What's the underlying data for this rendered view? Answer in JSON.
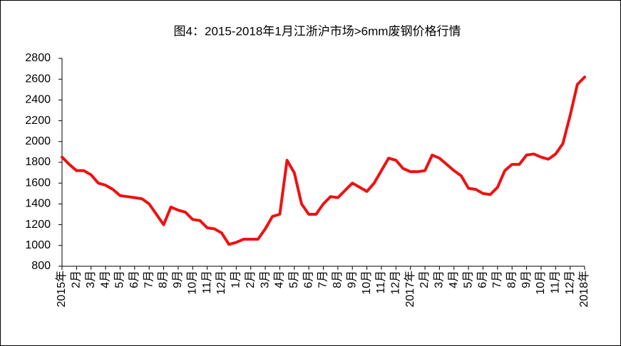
{
  "chart_data": {
    "type": "line",
    "title": "图4：2015-2018年1月江浙沪市场>6mm废钢价格行情",
    "categories": [
      "2015年",
      null,
      "2月",
      null,
      "3月",
      null,
      "4月",
      null,
      "5月",
      null,
      "6月",
      null,
      "7月",
      null,
      "8月",
      null,
      "9月",
      null,
      "10月",
      null,
      "11月",
      null,
      "12月",
      null,
      "1月",
      null,
      "2月",
      null,
      "3月",
      null,
      "4月",
      null,
      "5月",
      null,
      "6月",
      null,
      "7月",
      null,
      "8月",
      null,
      "9月",
      null,
      "10月",
      null,
      "11月",
      null,
      "12月",
      null,
      "2017年",
      null,
      "2月",
      null,
      "3月",
      null,
      "4月",
      null,
      "5月",
      null,
      "6月",
      null,
      "7月",
      null,
      "8月",
      null,
      "9月",
      null,
      "10月",
      null,
      "11月",
      null,
      "12月",
      null,
      "2018年"
    ],
    "series": [
      {
        "name": "江浙沪市场>6mm废钢价格",
        "color": "#ee1111",
        "values": [
          1850,
          1780,
          1720,
          1720,
          1680,
          1600,
          1580,
          1540,
          1480,
          1470,
          1460,
          1450,
          1400,
          1300,
          1200,
          1370,
          1340,
          1320,
          1250,
          1240,
          1170,
          1160,
          1120,
          1010,
          1030,
          1060,
          1060,
          1060,
          1160,
          1280,
          1300,
          1820,
          1700,
          1400,
          1300,
          1300,
          1400,
          1470,
          1460,
          1530,
          1600,
          1560,
          1520,
          1600,
          1720,
          1840,
          1820,
          1740,
          1710,
          1710,
          1720,
          1870,
          1840,
          1780,
          1720,
          1670,
          1550,
          1540,
          1500,
          1490,
          1560,
          1720,
          1780,
          1780,
          1870,
          1880,
          1850,
          1830,
          1880,
          1980,
          2250,
          2550,
          2620
        ]
      }
    ],
    "ylim": [
      800,
      2800
    ],
    "yticks": [
      800,
      1000,
      1200,
      1400,
      1600,
      1800,
      2000,
      2200,
      2400,
      2600,
      2800
    ],
    "grid": false
  }
}
